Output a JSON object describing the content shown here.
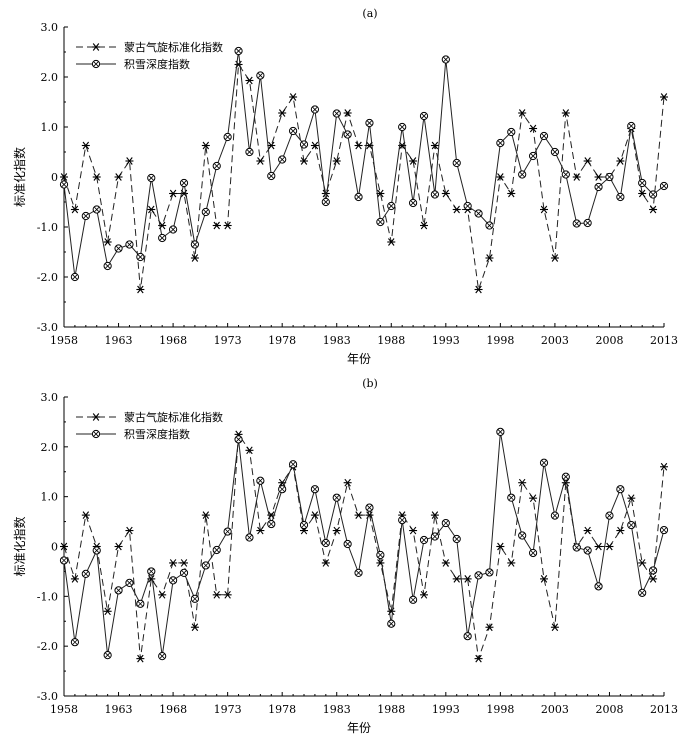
{
  "chart_data": [
    {
      "type": "line",
      "panel_label": "(a)",
      "xlabel": "年份",
      "ylabel": "标准化指数",
      "xlim": [
        1958,
        2013
      ],
      "ylim": [
        -3.0,
        3.0
      ],
      "xticks": [
        1958,
        1963,
        1968,
        1973,
        1978,
        1983,
        1988,
        1993,
        1998,
        2003,
        2008,
        2013
      ],
      "yticks": [
        "-3.0",
        "-2.0",
        "-1.0",
        "0",
        "1.0",
        "2.0",
        "3.0"
      ],
      "legend_position": "top-left",
      "x": [
        1958,
        1959,
        1960,
        1961,
        1962,
        1963,
        1964,
        1965,
        1966,
        1967,
        1968,
        1969,
        1970,
        1971,
        1972,
        1973,
        1974,
        1975,
        1976,
        1977,
        1978,
        1979,
        1980,
        1981,
        1982,
        1983,
        1984,
        1985,
        1986,
        1987,
        1988,
        1989,
        1990,
        1991,
        1992,
        1993,
        1994,
        1995,
        1996,
        1997,
        1998,
        1999,
        2000,
        2001,
        2002,
        2003,
        2004,
        2005,
        2006,
        2007,
        2008,
        2009,
        2010,
        2011,
        2012,
        2013
      ],
      "series": [
        {
          "name": "蒙古气旋标准化指数",
          "marker": "star",
          "style": "dashed",
          "values": [
            0.0,
            -0.65,
            0.63,
            0.0,
            -1.3,
            0.0,
            0.32,
            -2.25,
            -0.65,
            -0.97,
            -0.33,
            -0.33,
            -1.62,
            0.63,
            -0.97,
            -0.97,
            2.25,
            1.93,
            0.32,
            0.63,
            1.28,
            1.6,
            0.32,
            0.63,
            -0.33,
            0.32,
            1.28,
            0.63,
            0.63,
            -0.33,
            -1.3,
            0.63,
            0.32,
            -0.97,
            0.63,
            -0.33,
            -0.65,
            -0.65,
            -2.25,
            -1.62,
            0.0,
            -0.33,
            1.28,
            0.97,
            -0.65,
            -1.62,
            1.28,
            0.0,
            0.32,
            0.0,
            0.0,
            0.32,
            0.97,
            -0.33,
            -0.65,
            1.6
          ]
        },
        {
          "name": "积雪深度指数",
          "marker": "circle-x",
          "style": "solid",
          "values": [
            -0.15,
            -2.0,
            -0.78,
            -0.65,
            -1.78,
            -1.43,
            -1.35,
            -1.6,
            -0.02,
            -1.22,
            -1.05,
            -0.12,
            -1.35,
            -0.7,
            0.22,
            0.8,
            2.52,
            0.5,
            2.03,
            0.02,
            0.35,
            0.92,
            0.65,
            1.35,
            -0.5,
            1.27,
            0.85,
            -0.4,
            1.08,
            -0.9,
            -0.58,
            1.0,
            -0.52,
            1.22,
            -0.35,
            2.35,
            0.28,
            -0.58,
            -0.73,
            -0.97,
            0.68,
            0.9,
            0.05,
            0.42,
            0.82,
            0.5,
            0.05,
            -0.93,
            -0.92,
            -0.2,
            0.0,
            -0.4,
            1.02,
            -0.12,
            -0.35,
            -0.18
          ]
        }
      ]
    },
    {
      "type": "line",
      "panel_label": "(b)",
      "xlabel": "年份",
      "ylabel": "标准化指数",
      "xlim": [
        1958,
        2013
      ],
      "ylim": [
        -3.0,
        3.0
      ],
      "xticks": [
        1958,
        1963,
        1968,
        1973,
        1978,
        1983,
        1988,
        1993,
        1998,
        2003,
        2008,
        2013
      ],
      "yticks": [
        "-3.0",
        "-2.0",
        "-1.0",
        "0",
        "1.0",
        "2.0",
        "3.0"
      ],
      "legend_position": "top-left",
      "x": [
        1958,
        1959,
        1960,
        1961,
        1962,
        1963,
        1964,
        1965,
        1966,
        1967,
        1968,
        1969,
        1970,
        1971,
        1972,
        1973,
        1974,
        1975,
        1976,
        1977,
        1978,
        1979,
        1980,
        1981,
        1982,
        1983,
        1984,
        1985,
        1986,
        1987,
        1988,
        1989,
        1990,
        1991,
        1992,
        1993,
        1994,
        1995,
        1996,
        1997,
        1998,
        1999,
        2000,
        2001,
        2002,
        2003,
        2004,
        2005,
        2006,
        2007,
        2008,
        2009,
        2010,
        2011,
        2012,
        2013
      ],
      "series": [
        {
          "name": "蒙古气旋标准化指数",
          "marker": "star",
          "style": "dashed",
          "values": [
            0.0,
            -0.65,
            0.63,
            0.0,
            -1.3,
            0.0,
            0.32,
            -2.25,
            -0.65,
            -0.97,
            -0.33,
            -0.33,
            -1.62,
            0.63,
            -0.97,
            -0.97,
            2.25,
            1.93,
            0.32,
            0.63,
            1.28,
            1.6,
            0.32,
            0.63,
            -0.33,
            0.32,
            1.28,
            0.63,
            0.63,
            -0.33,
            -1.3,
            0.63,
            0.32,
            -0.97,
            0.63,
            -0.33,
            -0.65,
            -0.65,
            -2.25,
            -1.62,
            0.0,
            -0.33,
            1.28,
            0.97,
            -0.65,
            -1.62,
            1.28,
            0.0,
            0.32,
            0.0,
            0.0,
            0.32,
            0.97,
            -0.33,
            -0.65,
            1.6
          ]
        },
        {
          "name": "积雪深度指数",
          "marker": "circle-x",
          "style": "solid",
          "values": [
            -0.28,
            -1.92,
            -0.55,
            -0.08,
            -2.18,
            -0.88,
            -0.73,
            -1.15,
            -0.5,
            -2.2,
            -0.68,
            -0.53,
            -1.05,
            -0.38,
            -0.07,
            0.3,
            2.15,
            0.18,
            1.32,
            0.45,
            1.15,
            1.65,
            0.43,
            1.15,
            0.07,
            0.98,
            0.05,
            -0.53,
            0.78,
            -0.17,
            -1.55,
            0.53,
            -1.07,
            0.13,
            0.2,
            0.47,
            0.15,
            -1.8,
            -0.58,
            -0.52,
            2.3,
            0.98,
            0.22,
            -0.13,
            1.68,
            0.62,
            1.4,
            -0.02,
            -0.08,
            -0.8,
            0.62,
            1.15,
            0.43,
            -0.93,
            -0.48,
            0.33
          ]
        }
      ]
    }
  ]
}
